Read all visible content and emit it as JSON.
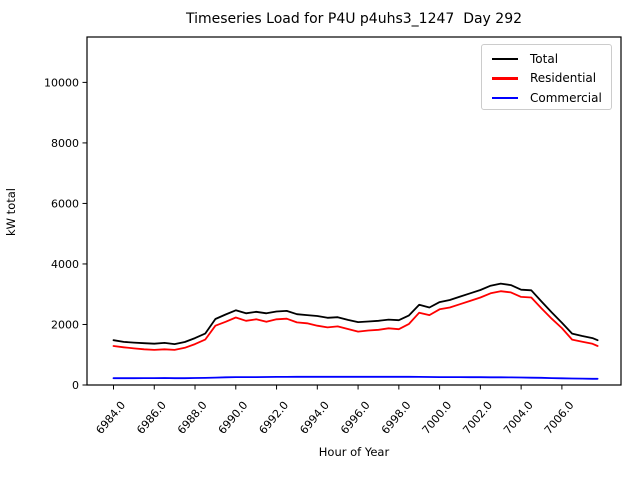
{
  "figure": {
    "background": "#ffffff"
  },
  "chart_data": {
    "type": "line",
    "title": "Timeseries Load for P4U p4uhs3_1247  Day 292",
    "xlabel": "Hour of Year",
    "ylabel": "kW total",
    "xlim": [
      6982.7,
      7008.9
    ],
    "ylim": [
      0,
      11500
    ],
    "grid": false,
    "legend_position": "upper right",
    "x_tick_rotation": -50,
    "xtick_values": [
      6984,
      6986,
      6988,
      6990,
      6992,
      6994,
      6996,
      6998,
      7000,
      7002,
      7004,
      7006
    ],
    "xtick_labels": [
      "6984.0",
      "6986.0",
      "6988.0",
      "6990.0",
      "6992.0",
      "6994.0",
      "6996.0",
      "6998.0",
      "7000.0",
      "7002.0",
      "7004.0",
      "7006.0"
    ],
    "ytick_values": [
      0,
      2000,
      4000,
      6000,
      8000,
      10000
    ],
    "ytick_labels": [
      "0",
      "2000",
      "4000",
      "6000",
      "8000",
      "10000"
    ],
    "x": [
      6984,
      6984.5,
      6985,
      6985.5,
      6986,
      6986.5,
      6987,
      6987.5,
      6988,
      6988.5,
      6989,
      6989.5,
      6990,
      6990.5,
      6991,
      6991.5,
      6992,
      6992.5,
      6993,
      6993.5,
      6994,
      6994.5,
      6995,
      6995.5,
      6996,
      6996.5,
      6997,
      6997.5,
      6998,
      6998.5,
      6999,
      6999.5,
      7000,
      7000.5,
      7001,
      7001.5,
      7002,
      7002.5,
      7003,
      7003.5,
      7004,
      7004.5,
      7005,
      7005.5,
      7006,
      7006.5,
      7007,
      7007.5,
      7007.75
    ],
    "series": [
      {
        "name": "Total",
        "color": "#000000",
        "values": [
          1480,
          1425,
          1400,
          1380,
          1365,
          1390,
          1350,
          1420,
          1550,
          1700,
          2180,
          2330,
          2470,
          2370,
          2420,
          2370,
          2430,
          2450,
          2340,
          2310,
          2280,
          2220,
          2240,
          2150,
          2080,
          2100,
          2120,
          2160,
          2140,
          2300,
          2650,
          2560,
          2740,
          2810,
          2920,
          3030,
          3140,
          3280,
          3350,
          3300,
          3150,
          3130,
          2760,
          2400,
          2060,
          1700,
          1620,
          1550,
          1480
        ]
      },
      {
        "name": "Residential",
        "color": "#ff0000",
        "values": [
          1290,
          1245,
          1210,
          1180,
          1160,
          1180,
          1160,
          1230,
          1350,
          1500,
          1960,
          2090,
          2230,
          2120,
          2170,
          2090,
          2170,
          2190,
          2070,
          2040,
          1960,
          1905,
          1935,
          1850,
          1765,
          1800,
          1825,
          1875,
          1845,
          2020,
          2390,
          2310,
          2500,
          2560,
          2670,
          2780,
          2890,
          3030,
          3100,
          3060,
          2910,
          2890,
          2530,
          2190,
          1880,
          1500,
          1430,
          1360,
          1290
        ]
      },
      {
        "name": "Commercial",
        "color": "#0000ff",
        "values": [
          225,
          225,
          225,
          228,
          228,
          230,
          225,
          225,
          230,
          235,
          245,
          255,
          260,
          262,
          262,
          265,
          268,
          268,
          270,
          270,
          272,
          272,
          272,
          272,
          270,
          270,
          272,
          272,
          272,
          272,
          268,
          265,
          262,
          262,
          260,
          258,
          258,
          255,
          255,
          252,
          248,
          242,
          238,
          228,
          220,
          215,
          210,
          205,
          205
        ]
      }
    ]
  }
}
